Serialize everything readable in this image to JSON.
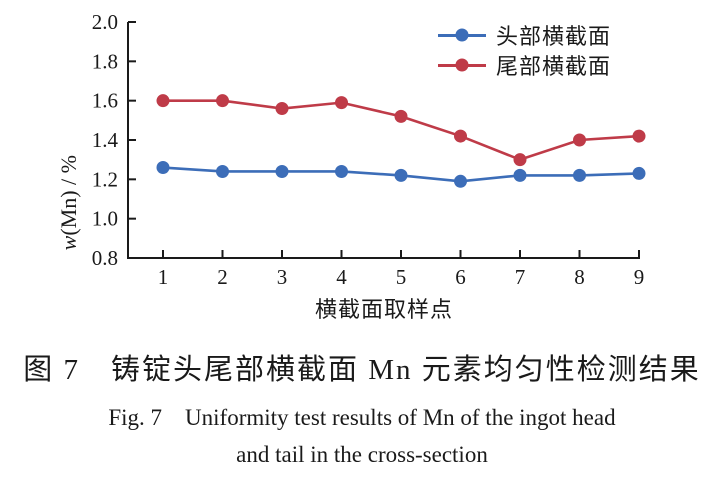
{
  "figure": {
    "caption_cn": "图 7　铸锭头尾部横截面 Mn 元素均匀性检测结果",
    "caption_en_line1": "Fig. 7　Uniformity test results of Mn of the ingot head",
    "caption_en_line2": "and tail in the cross-section"
  },
  "chart_data": {
    "type": "line",
    "x": [
      1,
      2,
      3,
      4,
      5,
      6,
      7,
      8,
      9
    ],
    "series": [
      {
        "name": "头部横截面",
        "color": "#3c6db8",
        "values": [
          1.26,
          1.24,
          1.24,
          1.24,
          1.22,
          1.19,
          1.22,
          1.22,
          1.23
        ]
      },
      {
        "name": "尾部横截面",
        "color": "#bf3b48",
        "values": [
          1.6,
          1.6,
          1.56,
          1.59,
          1.52,
          1.42,
          1.3,
          1.4,
          1.42
        ]
      }
    ],
    "xlabel": "横截面取样点",
    "ylabel_italic": "w",
    "ylabel_rest": "(Mn) / %",
    "ylim": [
      0.8,
      2.0
    ],
    "ytick_step": 0.2,
    "ytick_labels": [
      "0.8",
      "1.0",
      "1.2",
      "1.4",
      "1.6",
      "1.8",
      "2.0"
    ],
    "legend_position": "top-right",
    "grid": false,
    "axis_color": "#1a1a1a",
    "marker": "circle",
    "marker_radius": 6.5,
    "line_width": 2.6
  }
}
